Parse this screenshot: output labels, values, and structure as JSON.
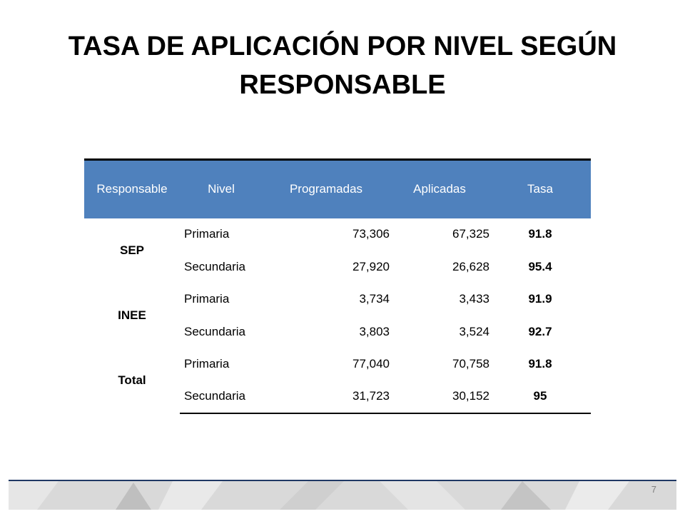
{
  "slide": {
    "title": "TASA DE APLICACIÓN POR NIVEL SEGÚN RESPONSABLE",
    "page_number": "7"
  },
  "table": {
    "headers": [
      "Responsable",
      "Nivel",
      "Programadas",
      "Aplicadas",
      "Tasa"
    ],
    "groups": [
      {
        "responsable": "SEP",
        "rows": [
          {
            "nivel": "Primaria",
            "programadas": "73,306",
            "aplicadas": "67,325",
            "tasa": "91.8"
          },
          {
            "nivel": "Secundaria",
            "programadas": "27,920",
            "aplicadas": "26,628",
            "tasa": "95.4"
          }
        ]
      },
      {
        "responsable": "INEE",
        "rows": [
          {
            "nivel": "Primaria",
            "programadas": "3,734",
            "aplicadas": "3,433",
            "tasa": "91.9"
          },
          {
            "nivel": "Secundaria",
            "programadas": "3,803",
            "aplicadas": "3,524",
            "tasa": "92.7"
          }
        ]
      },
      {
        "responsable": "Total",
        "rows": [
          {
            "nivel": "Primaria",
            "programadas": "77,040",
            "aplicadas": "70,758",
            "tasa": "91.8"
          },
          {
            "nivel": "Secundaria",
            "programadas": "31,723",
            "aplicadas": "30,152",
            "tasa": "95"
          }
        ]
      }
    ]
  },
  "colors": {
    "header_bg": "#4f81bd",
    "header_text": "#ffffff",
    "footer_bg": "#d9d9d9",
    "footer_line": "#1f3864"
  }
}
